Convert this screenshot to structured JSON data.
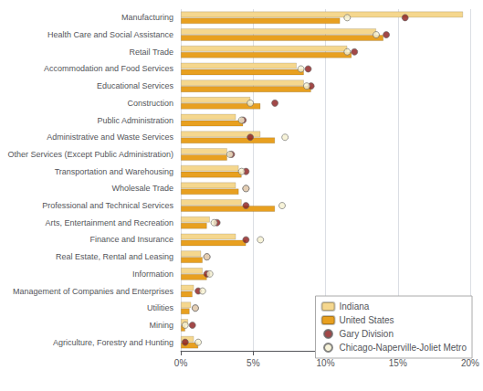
{
  "chart_data": {
    "type": "bar",
    "orientation": "horizontal",
    "categories": [
      "Manufacturing",
      "Health Care and Social Assistance",
      "Retail Trade",
      "Accommodation and Food Services",
      "Educational Services",
      "Construction",
      "Public Administration",
      "Administrative and Waste Services",
      "Other Services (Except Public Administration)",
      "Transportation and Warehousing",
      "Wholesale Trade",
      "Professional and Technical Services",
      "Arts, Entertainment and Recreation",
      "Finance and Insurance",
      "Real Estate, Rental and Leasing",
      "Information",
      "Management of Companies and Enterprises",
      "Utilities",
      "Mining",
      "Agriculture, Forestry and Hunting"
    ],
    "series": [
      {
        "name": "Indiana",
        "type": "bar",
        "color": "#f5d78e",
        "values": [
          19.5,
          13.5,
          11.5,
          8.0,
          8.5,
          4.8,
          3.8,
          5.5,
          3.2,
          4.0,
          3.8,
          4.2,
          2.0,
          3.8,
          1.4,
          1.5,
          0.9,
          0.7,
          0.5,
          0.9
        ]
      },
      {
        "name": "United States",
        "type": "bar",
        "color": "#e8a020",
        "values": [
          11.0,
          14.0,
          11.8,
          8.5,
          9.0,
          5.5,
          4.3,
          6.5,
          3.2,
          4.2,
          4.0,
          6.5,
          1.8,
          4.5,
          1.5,
          1.8,
          0.8,
          0.6,
          0.3,
          1.2
        ]
      },
      {
        "name": "Gary Division",
        "type": "scatter",
        "marker": "circle",
        "color": "#8b1a1a",
        "values": [
          15.5,
          14.2,
          12.0,
          8.8,
          9.0,
          6.5,
          4.3,
          4.8,
          3.5,
          4.5,
          4.5,
          4.5,
          2.5,
          4.5,
          1.8,
          1.8,
          1.2,
          1.0,
          0.8,
          0.3
        ]
      },
      {
        "name": "Chicago-Naperville-Joliet Metro",
        "type": "scatter",
        "marker": "circle",
        "color": "#f5f0d0",
        "values": [
          11.5,
          13.5,
          11.5,
          8.3,
          8.7,
          4.8,
          4.2,
          7.2,
          3.4,
          4.2,
          4.5,
          7.0,
          2.3,
          5.5,
          1.8,
          2.0,
          1.5,
          1.0,
          0.3,
          1.2
        ]
      }
    ],
    "xlim": [
      0,
      20
    ],
    "xticks": [
      {
        "value": 0,
        "label": "0%"
      },
      {
        "value": 5,
        "label": "5%"
      },
      {
        "value": 10,
        "label": "10%"
      },
      {
        "value": 15,
        "label": "15%"
      },
      {
        "value": 20,
        "label": "20%"
      }
    ],
    "grid": true,
    "legend": "lower right"
  }
}
